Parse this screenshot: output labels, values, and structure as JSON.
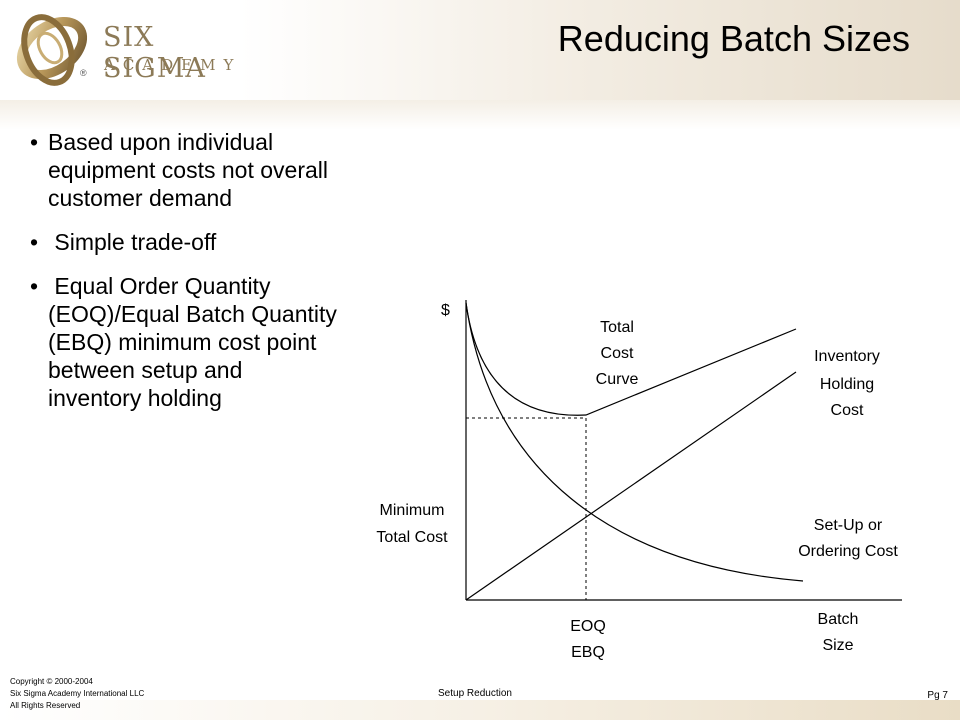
{
  "logo": {
    "line1": "SIX SIGMA",
    "line2": "ACADEMY",
    "mark": "®"
  },
  "slide": {
    "title": "Reducing Batch Sizes"
  },
  "bullets": [
    {
      "marker": "•",
      "lines": [
        "Based upon individual",
        "equipment costs not overall",
        "customer demand"
      ]
    },
    {
      "marker": "•",
      "lines": [
        " Simple trade-off"
      ]
    },
    {
      "marker": "•",
      "lines": [
        " Equal Order Quantity",
        "(EOQ)/Equal Batch Quantity",
        "(EBQ) minimum cost point",
        "between setup and",
        "inventory holding"
      ]
    }
  ],
  "diagram": {
    "y_axis_label": "$",
    "x_axis_label_1": "Batch",
    "x_axis_label_2": "Size",
    "total_cost_1": "Total",
    "total_cost_2": "Cost",
    "total_cost_3": "Curve",
    "holding_1": "Inventory",
    "holding_2": "Holding",
    "holding_3": "Cost",
    "setup_1": "Set-Up or",
    "setup_2": "Ordering Cost",
    "min_cost_1": "Minimum",
    "min_cost_2": "Total Cost",
    "eoq_1": "EOQ",
    "eoq_2": "EBQ"
  },
  "footer": {
    "copyright": "Copyright © 2000-2004",
    "company": "Six Sigma Academy International LLC",
    "rights": "All Rights Reserved",
    "section": "Setup Reduction",
    "page": "Pg 7"
  }
}
